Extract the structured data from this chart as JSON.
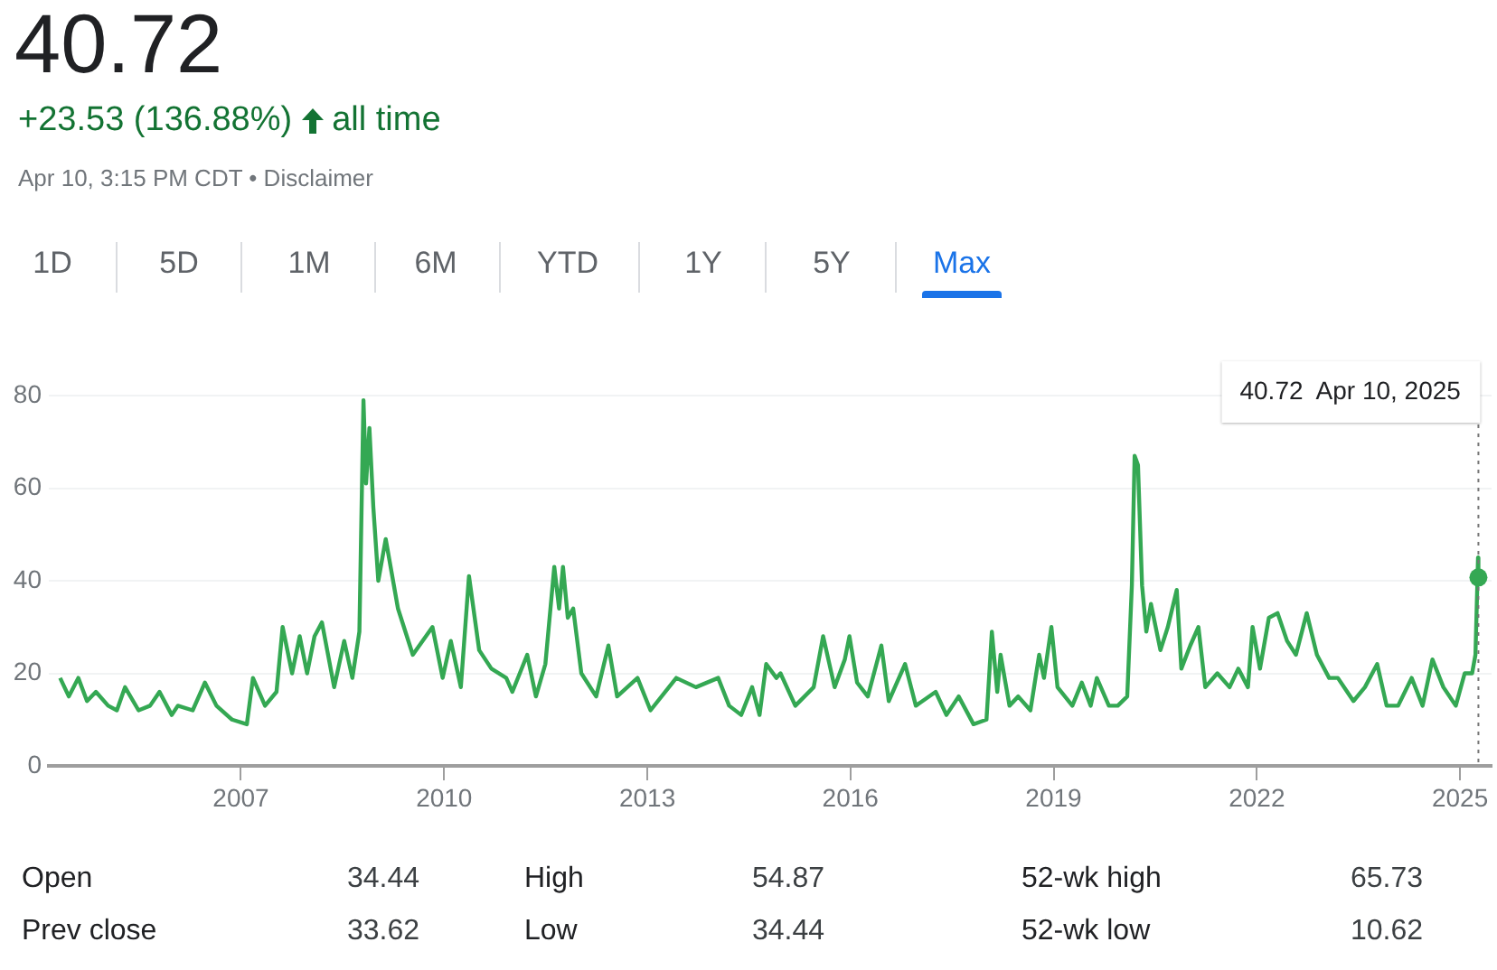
{
  "chart_data": {
    "type": "line",
    "title": "40.72",
    "subtitle": "+23.53 (136.88%)",
    "color": "#34a853",
    "grid": "y",
    "legend": false,
    "marker": "none",
    "line_style": "solid",
    "xlim": [
      "2004-03-01",
      "2025-06-20"
    ],
    "xticks": [
      "2007",
      "2010",
      "2013",
      "2016",
      "2019",
      "2022",
      "2025"
    ],
    "ylim": [
      0,
      80
    ],
    "yticks": [
      0,
      20,
      40,
      60,
      80
    ],
    "ref_lines": [
      {
        "axis": "x",
        "value": "2025-04-10",
        "line_style": "dotted",
        "color": "#757575"
      }
    ],
    "annotations": [
      "all time",
      "Apr 10, 3:15 PM CDT • Disclaimer",
      "1D",
      "5D",
      "1M",
      "6M",
      "YTD",
      "1Y",
      "5Y",
      "Max",
      "40.72  Apr 10, 2025",
      "Open",
      "34.44",
      "High",
      "54.87",
      "52-wk high",
      "65.73",
      "Prev close",
      "33.62",
      "Low",
      "34.44",
      "52-wk low",
      "10.62"
    ],
    "x": [
      "2004-05-01",
      "2004-06-17",
      "2004-08-07",
      "2004-09-23",
      "2004-11-10",
      "2005-01-15",
      "2005-03-03",
      "2005-04-16",
      "2005-06-28",
      "2005-08-29",
      "2005-10-19",
      "2005-12-24",
      "2006-01-26",
      "2006-04-16",
      "2006-06-21",
      "2006-08-22",
      "2006-11-14",
      "2007-02-02",
      "2007-03-07",
      "2007-05-11",
      "2007-07-12",
      "2007-08-14",
      "2007-10-04",
      "2007-11-14",
      "2007-12-24",
      "2008-02-02",
      "2008-03-13",
      "2008-05-18",
      "2008-07-11",
      "2008-08-24",
      "2008-10-01",
      "2008-10-23",
      "2008-11-06",
      "2008-11-24",
      "2008-12-15",
      "2009-01-11",
      "2009-02-20",
      "2009-04-27",
      "2009-07-16",
      "2009-10-30",
      "2009-12-24",
      "2010-02-06",
      "2010-04-01",
      "2010-05-15",
      "2010-07-09",
      "2010-09-13",
      "2010-12-02",
      "2011-01-04",
      "2011-03-25",
      "2011-05-11",
      "2011-07-01",
      "2011-08-18",
      "2011-09-13",
      "2011-10-04",
      "2011-10-30",
      "2011-11-28",
      "2012-01-11",
      "2012-03-31",
      "2012-06-05",
      "2012-07-22",
      "2012-11-09",
      "2013-01-18",
      "2013-06-06",
      "2013-09-20",
      "2014-01-18",
      "2014-03-18",
      "2014-05-22",
      "2014-07-20",
      "2014-08-29",
      "2014-10-04",
      "2014-11-28",
      "2014-12-20",
      "2015-03-10",
      "2015-06-17",
      "2015-08-07",
      "2015-10-08",
      "2015-12-02",
      "2015-12-27",
      "2016-02-06",
      "2016-04-04",
      "2016-06-16",
      "2016-07-26",
      "2016-10-22",
      "2016-12-19",
      "2017-04-05",
      "2017-06-02",
      "2017-08-07",
      "2017-10-26",
      "2018-01-04",
      "2018-02-02",
      "2018-03-03",
      "2018-03-21",
      "2018-05-08",
      "2018-06-24",
      "2018-08-29",
      "2018-10-15",
      "2018-11-10",
      "2018-12-20",
      "2019-01-22",
      "2019-04-12",
      "2019-06-02",
      "2019-07-20",
      "2019-08-22",
      "2019-10-26",
      "2019-12-13",
      "2020-02-02",
      "2020-02-27",
      "2020-03-13",
      "2020-03-31",
      "2020-04-22",
      "2020-05-15",
      "2020-06-09",
      "2020-07-30",
      "2020-09-08",
      "2020-10-26",
      "2020-11-20",
      "2021-01-07",
      "2021-02-20",
      "2021-03-29",
      "2021-06-02",
      "2021-08-07",
      "2021-09-23",
      "2021-11-14",
      "2021-12-09",
      "2022-01-18",
      "2022-03-07",
      "2022-04-23",
      "2022-06-13",
      "2022-07-31",
      "2022-09-27",
      "2022-11-21",
      "2023-01-26",
      "2023-03-14",
      "2023-06-06",
      "2023-08-07",
      "2023-10-12",
      "2023-12-02",
      "2024-02-02",
      "2024-04-15",
      "2024-06-13",
      "2024-08-05",
      "2024-10-03",
      "2024-12-09",
      "2025-01-26",
      "2025-03-07",
      "2025-03-25",
      "2025-04-08",
      "2025-04-10"
    ],
    "values": [
      19,
      15,
      19,
      14,
      16,
      13,
      12,
      17,
      12,
      13,
      16,
      11,
      13,
      12,
      18,
      13,
      10,
      9,
      19,
      13,
      16,
      30,
      20,
      28,
      20,
      28,
      31,
      17,
      27,
      19,
      29,
      79,
      61,
      73,
      56,
      40,
      49,
      34,
      24,
      30,
      19,
      27,
      17,
      41,
      25,
      21,
      19,
      16,
      24,
      15,
      22,
      43,
      34,
      43,
      32,
      34,
      20,
      15,
      26,
      15,
      19,
      12,
      19,
      17,
      19,
      13,
      11,
      17,
      11,
      22,
      19,
      20,
      13,
      17,
      28,
      17,
      23,
      28,
      18,
      15,
      26,
      14,
      22,
      13,
      16,
      11,
      15,
      9,
      10,
      29,
      16,
      24,
      13,
      15,
      12,
      24,
      19,
      30,
      17,
      13,
      18,
      13,
      19,
      13,
      13,
      15,
      39,
      67,
      65,
      39,
      29,
      35,
      25,
      30,
      38,
      21,
      26,
      30,
      17,
      20,
      17,
      21,
      17,
      30,
      21,
      32,
      33,
      27,
      24,
      33,
      24,
      19,
      19,
      14,
      17,
      22,
      13,
      13,
      19,
      13,
      23,
      17,
      13,
      20,
      20,
      24,
      45,
      40.72
    ]
  }
}
